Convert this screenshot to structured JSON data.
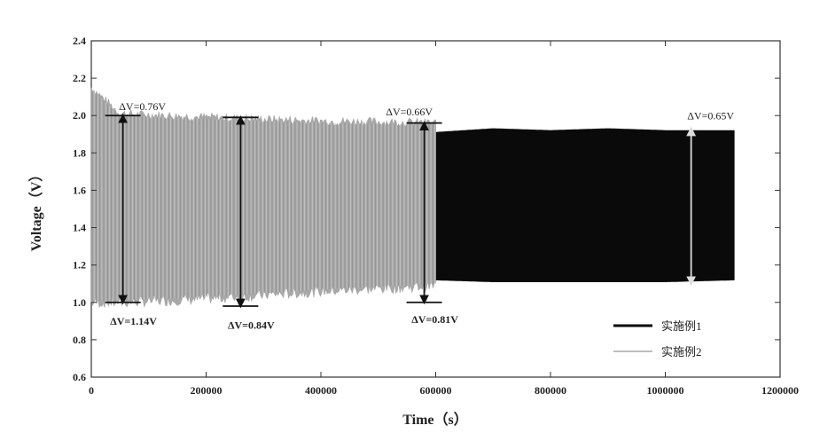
{
  "chart_data": {
    "type": "area",
    "xlabel": "Time（s）",
    "ylabel": "Voltage（V）",
    "xlim": [
      0,
      1200000
    ],
    "ylim": [
      0.6,
      2.4
    ],
    "xticks": [
      "0",
      "200000",
      "400000",
      "600000",
      "800000",
      "1000000",
      "1200000"
    ],
    "yticks": [
      "0.6",
      "0.8",
      "1.0",
      "1.2",
      "1.4",
      "1.6",
      "1.8",
      "2.0",
      "2.2",
      "2.4"
    ],
    "legend_position": "bottom-right",
    "series": [
      {
        "name": "实施例1",
        "color": "#0a0a0a",
        "x_range": [
          600000,
          1120000
        ],
        "upper": [
          [
            600000,
            1.91
          ],
          [
            700000,
            1.93
          ],
          [
            800000,
            1.92
          ],
          [
            900000,
            1.93
          ],
          [
            1000000,
            1.92
          ],
          [
            1120000,
            1.92
          ]
        ],
        "lower": [
          [
            600000,
            1.12
          ],
          [
            700000,
            1.11
          ],
          [
            800000,
            1.11
          ],
          [
            900000,
            1.11
          ],
          [
            1000000,
            1.11
          ],
          [
            1120000,
            1.12
          ]
        ]
      },
      {
        "name": "实施例2",
        "color": "#a8a8a8",
        "x_range": [
          0,
          600000
        ],
        "upper": [
          [
            0,
            2.15
          ],
          [
            50000,
            2.01
          ],
          [
            200000,
            1.99
          ],
          [
            400000,
            1.97
          ],
          [
            600000,
            1.96
          ]
        ],
        "lower": [
          [
            0,
            1.0
          ],
          [
            50000,
            1.0
          ],
          [
            200000,
            1.02
          ],
          [
            400000,
            1.06
          ],
          [
            600000,
            1.09
          ]
        ]
      }
    ],
    "annotations": [
      {
        "text": "ΔV=1.14V",
        "x": 55000,
        "y_top": 2.0,
        "y_bottom": 1.0,
        "label_y": 0.88,
        "color": "#111111"
      },
      {
        "text": "ΔV=0.76V",
        "x": 55000,
        "label_y": 2.03,
        "color": "#9a9a9a"
      },
      {
        "text": "ΔV=0.84V",
        "x": 260000,
        "y_top": 1.99,
        "y_bottom": 0.98,
        "label_y": 0.86,
        "color": "#111111"
      },
      {
        "text": "ΔV=0.66V",
        "x": 520000,
        "label_y": 2.0,
        "color": "#9a9a9a"
      },
      {
        "text": "ΔV=0.81V",
        "x": 580000,
        "y_top": 1.96,
        "y_bottom": 1.0,
        "label_y": 0.89,
        "color": "#111111"
      },
      {
        "text": "ΔV=0.65V",
        "x": 1045000,
        "y_top": 1.93,
        "y_bottom": 1.1,
        "label_y": 1.98,
        "color": "#9a9a9a"
      }
    ]
  }
}
